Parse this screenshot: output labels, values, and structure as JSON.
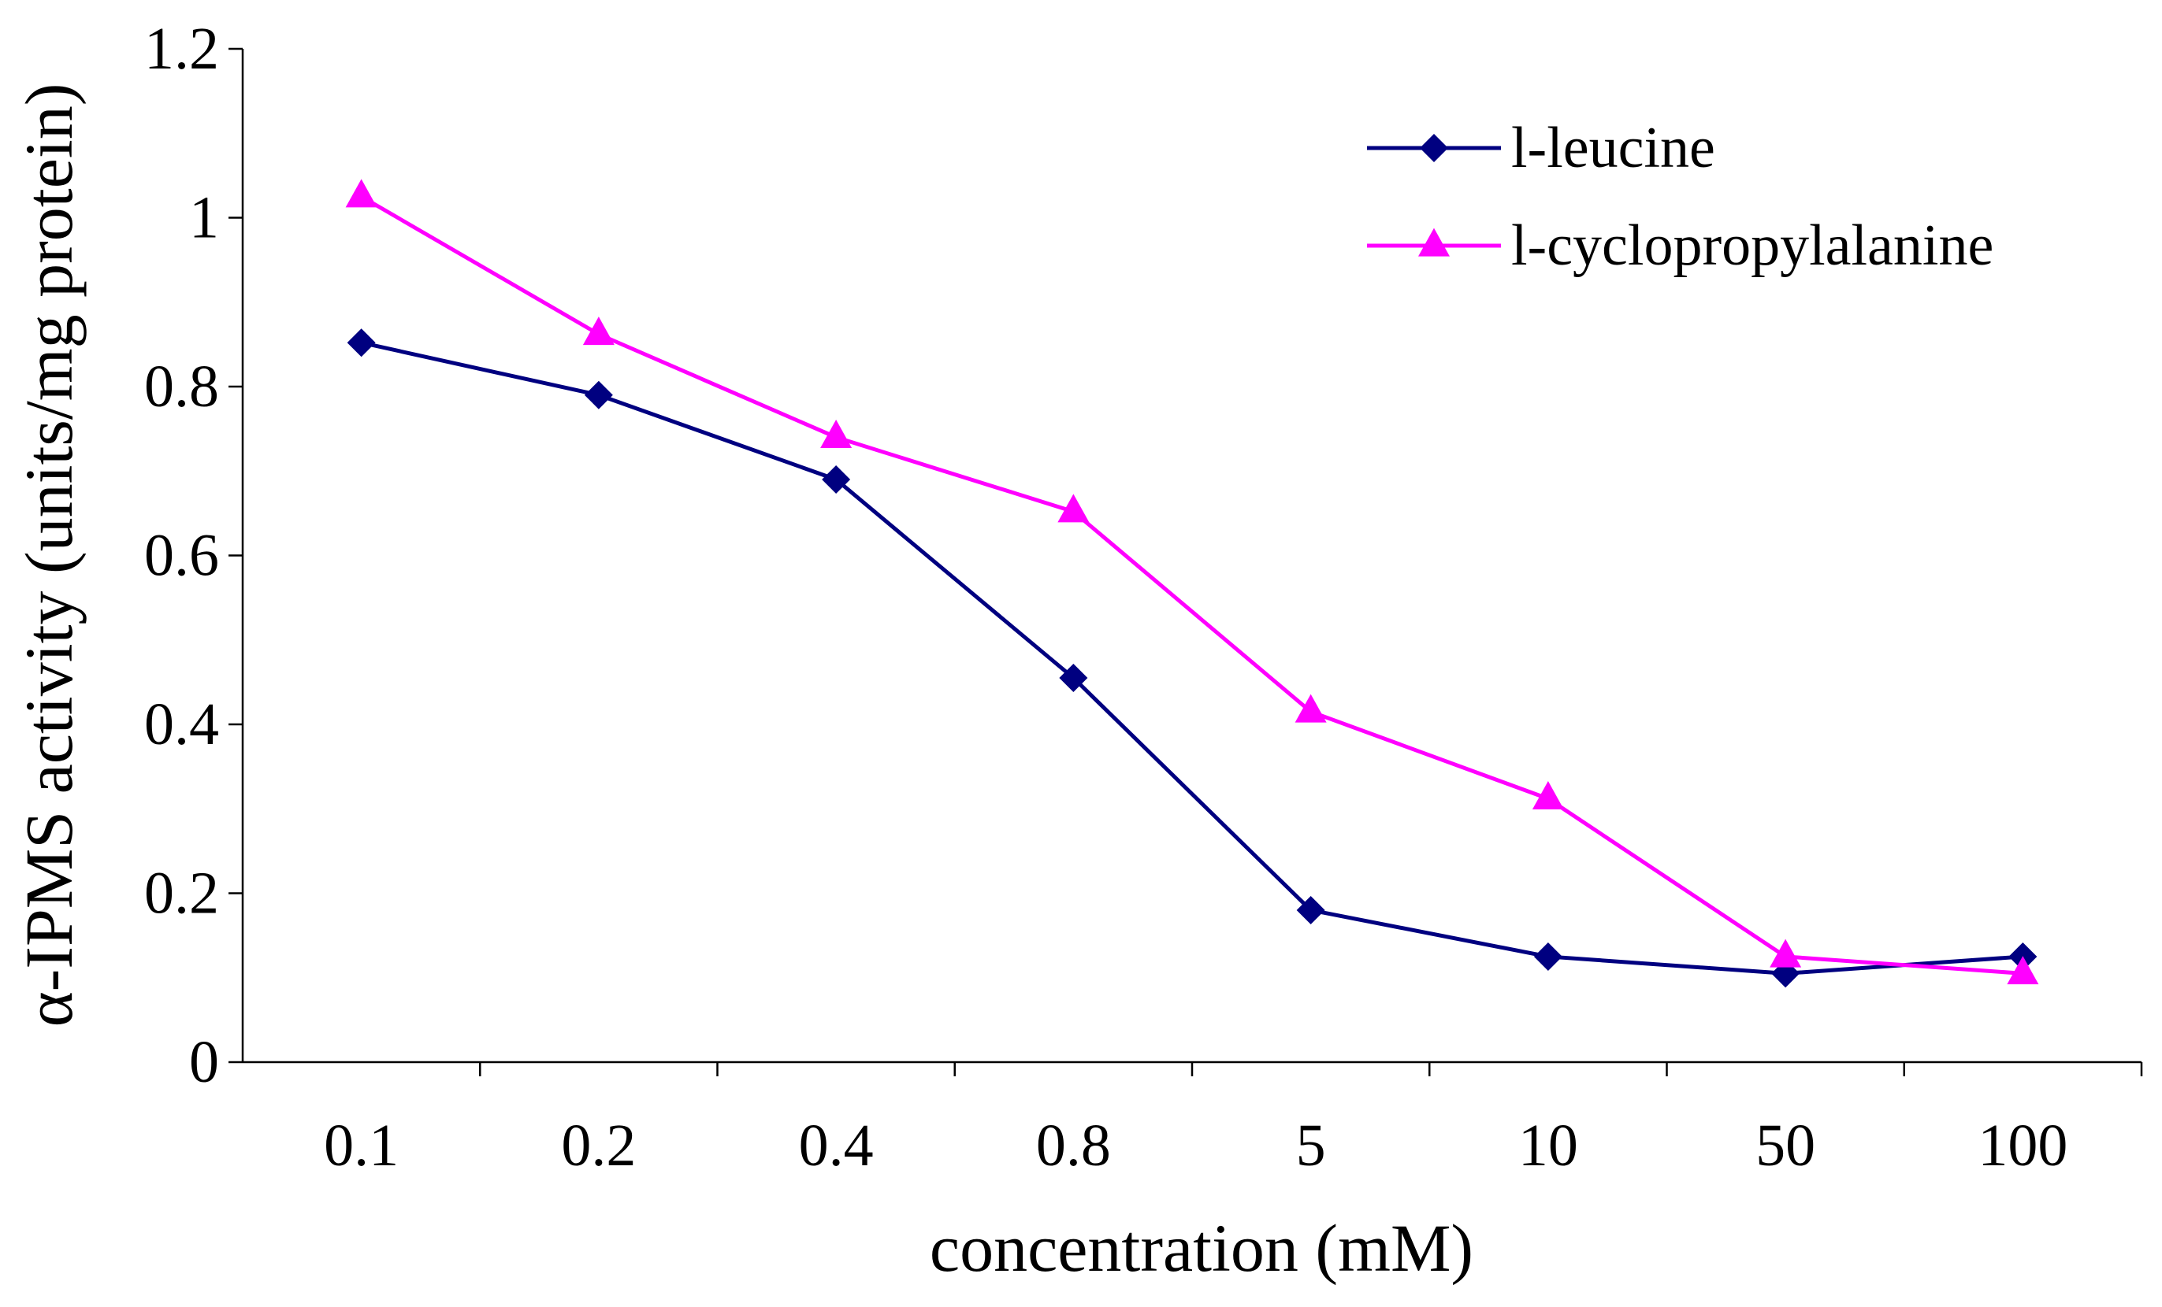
{
  "chart_data": {
    "type": "line",
    "title": "",
    "xlabel": "concentration (mM)",
    "ylabel": "α-IPMS activity (units/mg protein)",
    "categories": [
      "0.1",
      "0.2",
      "0.4",
      "0.8",
      "5",
      "10",
      "50",
      "100"
    ],
    "ylim": [
      0,
      1.2
    ],
    "yticks": [
      {
        "value": 0,
        "label": "0"
      },
      {
        "value": 0.2,
        "label": "0.2"
      },
      {
        "value": 0.4,
        "label": "0.4"
      },
      {
        "value": 0.6,
        "label": "0.6"
      },
      {
        "value": 0.8,
        "label": "0.8"
      },
      {
        "value": 1.0,
        "label": "1"
      },
      {
        "value": 1.2,
        "label": "1.2"
      }
    ],
    "grid": false,
    "legend_position": "top-right",
    "series": [
      {
        "name": "l-leucine",
        "color": "#000080",
        "marker": "diamond",
        "values": [
          0.852,
          0.79,
          0.69,
          0.455,
          0.18,
          0.125,
          0.105,
          0.125
        ]
      },
      {
        "name": "l-cyclopropylalanine",
        "color": "#FF00FF",
        "marker": "triangle",
        "values": [
          1.025,
          0.862,
          0.74,
          0.652,
          0.415,
          0.312,
          0.125,
          0.105
        ]
      }
    ]
  }
}
